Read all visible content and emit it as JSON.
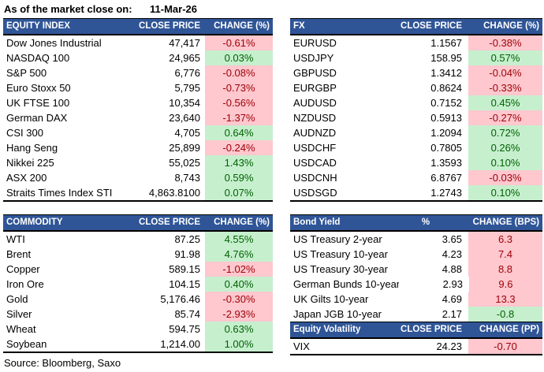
{
  "meta": {
    "as_of_label": "As of the market close on:",
    "as_of_date": "11-Mar-26",
    "source_note": "Source: Bloomberg, Saxo"
  },
  "colors": {
    "header_bg": "#2F5597",
    "header_text": "#FFFFFF",
    "up_bg": "#C6EFCE",
    "up_text": "#006100",
    "down_bg": "#FFC7CE",
    "down_text": "#9C0006",
    "border": "#000000"
  },
  "tables": {
    "equity_index": {
      "headers": [
        "EQUITY INDEX",
        "CLOSE PRICE",
        "CHANGE (%)"
      ],
      "rows": [
        {
          "name": "Dow Jones Industrial",
          "price": "47,417",
          "change": "-0.61%",
          "tone": "red"
        },
        {
          "name": "NASDAQ 100",
          "price": "24,965",
          "change": "0.03%",
          "tone": "green"
        },
        {
          "name": "S&P 500",
          "price": "6,776",
          "change": "-0.08%",
          "tone": "red"
        },
        {
          "name": "Euro Stoxx 50",
          "price": "5,795",
          "change": "-0.73%",
          "tone": "red"
        },
        {
          "name": "UK FTSE 100",
          "price": "10,354",
          "change": "-0.56%",
          "tone": "red"
        },
        {
          "name": "German DAX",
          "price": "23,640",
          "change": "-1.37%",
          "tone": "red"
        },
        {
          "name": "CSI 300",
          "price": "4,705",
          "change": "0.64%",
          "tone": "green"
        },
        {
          "name": "Hang Seng",
          "price": "25,899",
          "change": "-0.24%",
          "tone": "red"
        },
        {
          "name": "Nikkei 225",
          "price": "55,025",
          "change": "1.43%",
          "tone": "green"
        },
        {
          "name": "ASX 200",
          "price": "8,743",
          "change": "0.59%",
          "tone": "green"
        },
        {
          "name": "Straits Times Index STI",
          "price": "4,863.8100",
          "change": "0.07%",
          "tone": "green"
        }
      ]
    },
    "fx": {
      "headers": [
        "FX",
        "CLOSE PRICE",
        "CHANGE (%)"
      ],
      "rows": [
        {
          "name": "EURUSD",
          "price": "1.1567",
          "change": "-0.38%",
          "tone": "red"
        },
        {
          "name": "USDJPY",
          "price": "158.95",
          "change": "0.57%",
          "tone": "green"
        },
        {
          "name": "GBPUSD",
          "price": "1.3412",
          "change": "-0.04%",
          "tone": "red"
        },
        {
          "name": "EURGBP",
          "price": "0.8624",
          "change": "-0.33%",
          "tone": "red"
        },
        {
          "name": "AUDUSD",
          "price": "0.7152",
          "change": "0.45%",
          "tone": "green"
        },
        {
          "name": "NZDUSD",
          "price": "0.5913",
          "change": "-0.27%",
          "tone": "red"
        },
        {
          "name": "AUDNZD",
          "price": "1.2094",
          "change": "0.72%",
          "tone": "green"
        },
        {
          "name": "USDCHF",
          "price": "0.7805",
          "change": "0.26%",
          "tone": "green"
        },
        {
          "name": "USDCAD",
          "price": "1.3593",
          "change": "0.10%",
          "tone": "green"
        },
        {
          "name": "USDCNH",
          "price": "6.8767",
          "change": "-0.03%",
          "tone": "red"
        },
        {
          "name": "USDSGD",
          "price": "1.2743",
          "change": "0.10%",
          "tone": "green"
        }
      ]
    },
    "commodity": {
      "headers": [
        "COMMODITY",
        "CLOSE PRICE",
        "CHANGE (%)"
      ],
      "rows": [
        {
          "name": "WTI",
          "price": "87.25",
          "change": "4.55%",
          "tone": "green"
        },
        {
          "name": "Brent",
          "price": "91.98",
          "change": "4.76%",
          "tone": "green"
        },
        {
          "name": "Copper",
          "price": "589.15",
          "change": "-1.02%",
          "tone": "red"
        },
        {
          "name": "Iron Ore",
          "price": "104.15",
          "change": "0.40%",
          "tone": "green"
        },
        {
          "name": "Gold",
          "price": "5,176.46",
          "change": "-0.30%",
          "tone": "red"
        },
        {
          "name": "Silver",
          "price": "85.74",
          "change": "-2.93%",
          "tone": "red"
        },
        {
          "name": "Wheat",
          "price": "594.75",
          "change": "0.63%",
          "tone": "green"
        },
        {
          "name": "Soybean",
          "price": "1,214.00",
          "change": "1.00%",
          "tone": "green"
        }
      ]
    },
    "bond_yield": {
      "headers": [
        "Bond Yield",
        "%",
        "CHANGE (BPS)"
      ],
      "rows": [
        {
          "name": "US Treasury 2-year",
          "price": "3.65",
          "change": "6.3",
          "tone": "red"
        },
        {
          "name": "US Treasury 10-year",
          "price": "4.23",
          "change": "7.4",
          "tone": "red"
        },
        {
          "name": "US Treasury 30-year",
          "price": "4.88",
          "change": "8.8",
          "tone": "red"
        },
        {
          "name": "German Bunds 10-year",
          "price": "2.93",
          "change": "9.6",
          "tone": "red"
        },
        {
          "name": "UK Gilts 10-year",
          "price": "4.69",
          "change": "13.3",
          "tone": "red"
        },
        {
          "name": "Japan JGB 10-year",
          "price": "2.17",
          "change": "-0.8",
          "tone": "green"
        }
      ]
    },
    "equity_volatility": {
      "headers": [
        "Equity Volatility",
        "CLOSE PRICE",
        "CHANGE (PP)"
      ],
      "rows": [
        {
          "name": "VIX",
          "price": "24.23",
          "change": "-0.70",
          "tone": "red"
        }
      ]
    }
  }
}
